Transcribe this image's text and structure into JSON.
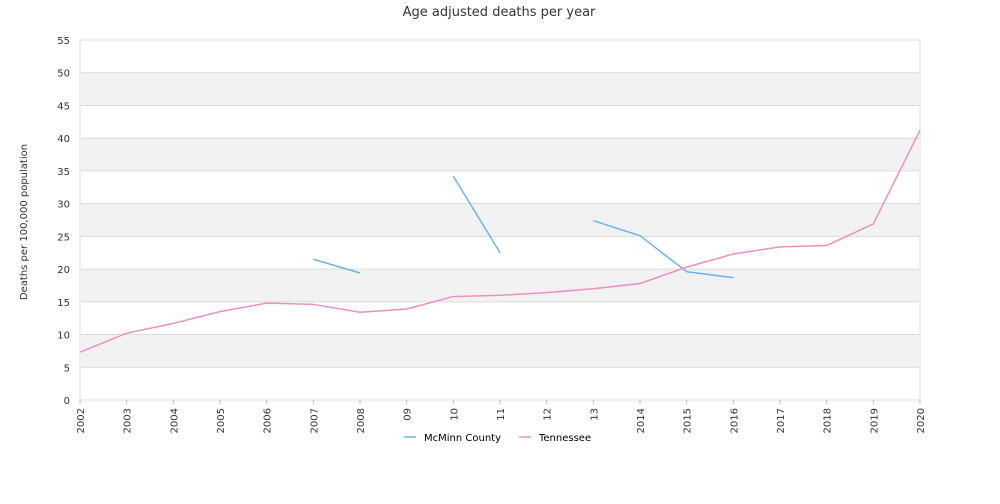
{
  "chart_data": {
    "type": "line",
    "title": "Age adjusted deaths per year",
    "ylabel": "Deaths per 100,000 population",
    "xlabel": "",
    "x": [
      "2002",
      "2003",
      "2004",
      "2005",
      "2006",
      "2007",
      "2008",
      "09",
      "10",
      "11",
      "12",
      "13",
      "2014",
      "2015",
      "2016",
      "2017",
      "2018",
      "2019",
      "2020"
    ],
    "ylim": [
      0,
      55
    ],
    "yticks": [
      0,
      5,
      10,
      15,
      20,
      25,
      30,
      35,
      40,
      45,
      50,
      55
    ],
    "grid": true,
    "banded_background": true,
    "legend_position": "bottom",
    "series": [
      {
        "name": "McMinn County",
        "color": "#6fb3ec",
        "values": [
          null,
          null,
          null,
          null,
          null,
          21.5,
          19.4,
          null,
          34.2,
          22.5,
          null,
          27.4,
          25.1,
          19.6,
          18.7,
          null,
          null,
          null,
          null
        ]
      },
      {
        "name": "Tennessee",
        "color": "#ef8fc0",
        "values": [
          7.3,
          10.2,
          11.7,
          13.5,
          14.8,
          14.6,
          13.4,
          13.9,
          15.8,
          16.0,
          16.4,
          17.0,
          17.8,
          20.3,
          22.3,
          23.4,
          23.6,
          26.9,
          41.2
        ]
      }
    ]
  }
}
